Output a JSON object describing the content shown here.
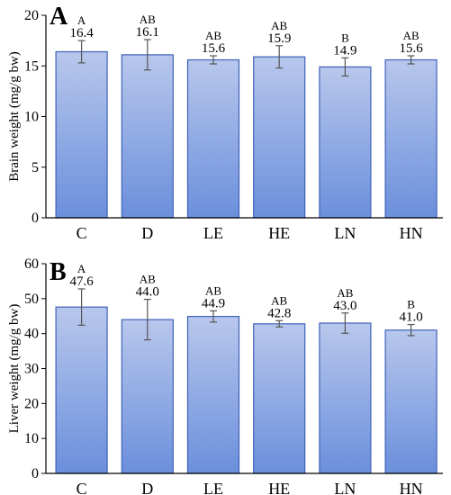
{
  "colors": {
    "bar_fill_top": "#b8c7ec",
    "bar_fill_bottom": "#6b8fdc",
    "bar_stroke": "#3e62b8",
    "axis": "#000000",
    "error_bar": "#555555"
  },
  "chart_data": [
    {
      "type": "bar",
      "panel_label": "A",
      "categories": [
        "C",
        "D",
        "LE",
        "HE",
        "LN",
        "HN"
      ],
      "values": [
        16.4,
        16.1,
        15.6,
        15.9,
        14.9,
        15.6
      ],
      "value_labels": [
        "16.4",
        "16.1",
        "15.6",
        "15.9",
        "14.9",
        "15.6"
      ],
      "errors": [
        1.1,
        1.5,
        0.4,
        1.1,
        0.9,
        0.4
      ],
      "significance": [
        "A",
        "AB",
        "AB",
        "AB",
        "B",
        "AB"
      ],
      "ylabel": "Brain weight (mg/g bw)",
      "ylim": [
        0,
        20
      ],
      "yticks": [
        0,
        5,
        10,
        15,
        20
      ],
      "ytick_labels": [
        "0",
        "5",
        "10",
        "15",
        "20"
      ],
      "grid": false
    },
    {
      "type": "bar",
      "panel_label": "B",
      "categories": [
        "C",
        "D",
        "LE",
        "HE",
        "LN",
        "HN"
      ],
      "values": [
        47.6,
        44.0,
        44.9,
        42.8,
        43.0,
        41.0
      ],
      "value_labels": [
        "47.6",
        "44.0",
        "44.9",
        "42.8",
        "43.0",
        "41.0"
      ],
      "errors": [
        5.2,
        5.8,
        1.6,
        0.9,
        2.9,
        1.6
      ],
      "significance": [
        "A",
        "AB",
        "AB",
        "AB",
        "AB",
        "B"
      ],
      "ylabel": "Liver weight (mg/g bw)",
      "ylim": [
        0,
        60
      ],
      "yticks": [
        0,
        10,
        20,
        30,
        40,
        50,
        60
      ],
      "ytick_labels": [
        "0",
        "10",
        "20",
        "30",
        "40",
        "50",
        "60"
      ],
      "grid": false
    }
  ]
}
